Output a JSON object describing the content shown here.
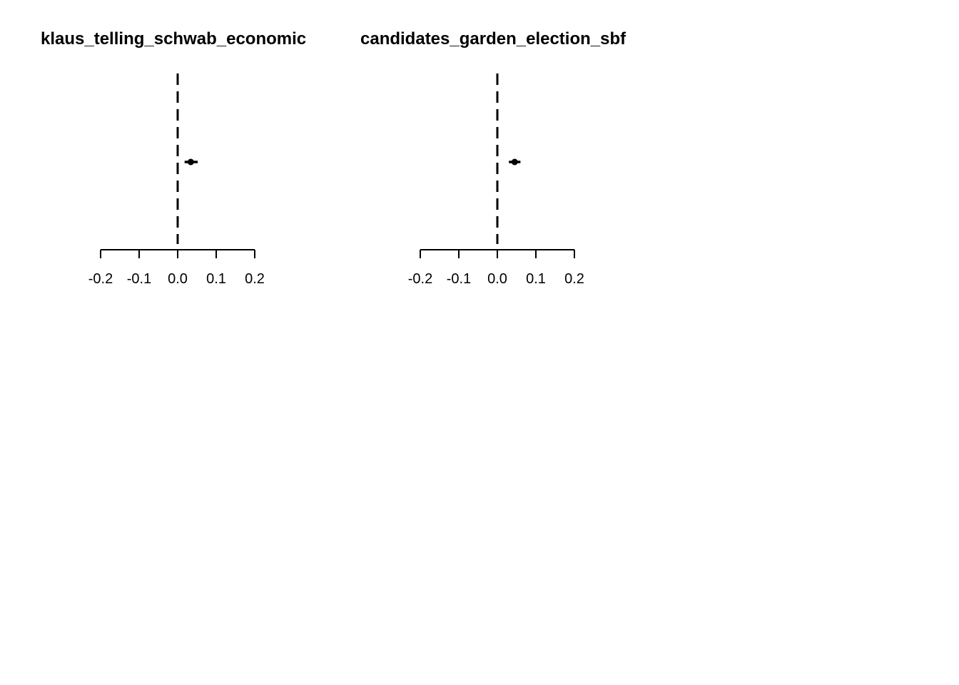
{
  "chart_data": [
    {
      "type": "scatter",
      "title": "klaus_telling_schwab_economic",
      "xlim": [
        -0.2,
        0.2
      ],
      "ticks": [
        -0.2,
        -0.1,
        0.0,
        0.1,
        0.2
      ],
      "tick_labels": [
        "-0.2",
        "-0.1",
        "0.0",
        "0.1",
        "0.2"
      ],
      "reference_line": 0.0,
      "points": [
        {
          "estimate": 0.034,
          "lower": 0.018,
          "upper": 0.052
        }
      ]
    },
    {
      "type": "scatter",
      "title": "candidates_garden_election_sbf",
      "xlim": [
        -0.2,
        0.2
      ],
      "ticks": [
        -0.2,
        -0.1,
        0.0,
        0.1,
        0.2
      ],
      "tick_labels": [
        "-0.2",
        "-0.1",
        "0.0",
        "0.1",
        "0.2"
      ],
      "reference_line": 0.0,
      "points": [
        {
          "estimate": 0.045,
          "lower": 0.03,
          "upper": 0.06
        }
      ]
    }
  ]
}
